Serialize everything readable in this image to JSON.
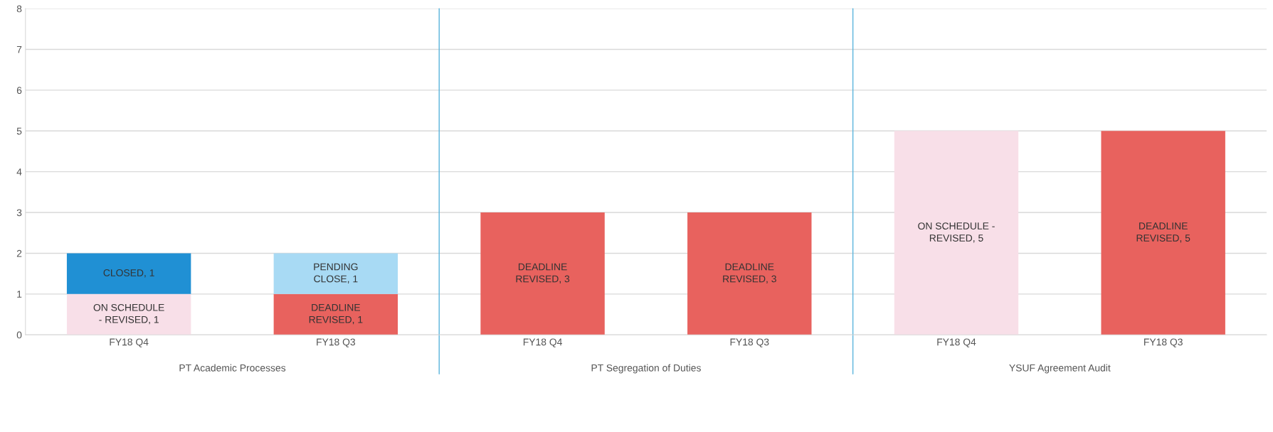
{
  "chart_data": {
    "type": "bar",
    "stacked": true,
    "categories": [
      "FY18 Q4",
      "FY18 Q3",
      "FY18 Q4",
      "FY18 Q3",
      "FY18 Q4",
      "FY18 Q3"
    ],
    "series": [
      {
        "color": "#f8dfe8",
        "values": [
          1,
          null,
          null,
          null,
          5,
          null
        ],
        "value_labels": [
          "ON SCHEDULE\n- REVISED, 1",
          null,
          null,
          null,
          "ON SCHEDULE -\nREVISED, 5",
          null
        ]
      },
      {
        "color": "#e8625e",
        "values": [
          null,
          1,
          3,
          3,
          null,
          5
        ],
        "value_labels": [
          null,
          "DEADLINE\nREVISED, 1",
          "DEADLINE\nREVISED, 3",
          "DEADLINE\nREVISED, 3",
          null,
          "DEADLINE\nREVISED, 5"
        ]
      },
      {
        "color": "#2090d4",
        "values": [
          1,
          null,
          null,
          null,
          null,
          null
        ],
        "value_labels": [
          "CLOSED, 1",
          null,
          null,
          null,
          null,
          null
        ]
      },
      {
        "color": "#a8daf4",
        "values": [
          null,
          1,
          null,
          null,
          null,
          null
        ],
        "value_labels": [
          null,
          "PENDING\nCLOSE, 1",
          null,
          null,
          null,
          null
        ]
      }
    ],
    "annotations": [
      "PT Academic Processes",
      "PT Segregation of Duties",
      "YSUF Agreement Audit"
    ],
    "ylim": [
      0,
      8
    ],
    "yticks": [
      0,
      1,
      2,
      3,
      4,
      5,
      6,
      7,
      8
    ],
    "grid": "y",
    "legend": false
  }
}
